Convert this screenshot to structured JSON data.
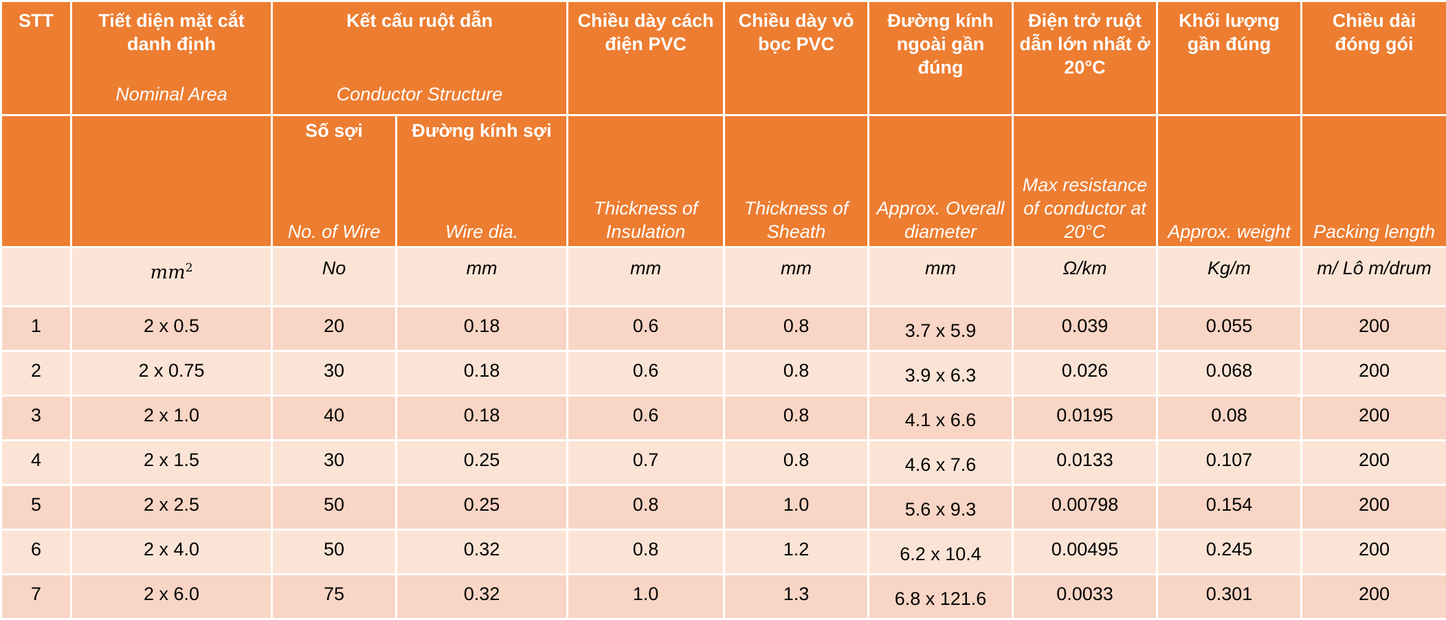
{
  "header": {
    "stt": "STT",
    "area": {
      "vi": "Tiết diện mặt cắt danh định",
      "en": "Nominal Area"
    },
    "structure": {
      "vi": "Kết cấu ruột dẫn",
      "en": "Conductor Structure"
    },
    "insulation": {
      "vi": "Chiều dày cách điện PVC",
      "en": "Thickness of Insulation"
    },
    "sheath": {
      "vi": "Chiều dày vỏ bọc PVC",
      "en": "Thickness of Sheath"
    },
    "diameter": {
      "vi": "Đường kính ngoài gần đúng",
      "en": "Approx. Overall diameter"
    },
    "resistance": {
      "vi": "Điện trở ruột dẫn lớn nhất ở 20°C",
      "en": "Max resistance of conductor at 20°C"
    },
    "weight": {
      "vi": "Khối lượng gần đúng",
      "en": "Approx. weight"
    },
    "length": {
      "vi": "Chiều dài đóng gói",
      "en": "Packing length"
    },
    "wires": {
      "vi": "Số sợi",
      "en": "No. of Wire"
    },
    "wire_dia": {
      "vi": "Đường kính sợi",
      "en": "Wire dia."
    }
  },
  "units": {
    "area_base": "mm",
    "area_exp": "2",
    "wires": "No",
    "wire_dia": "mm",
    "insulation": "mm",
    "sheath": "mm",
    "diameter": "mm",
    "resistance": "Ω/km",
    "weight": "Kg/m",
    "length": "m/ Lô m/drum"
  },
  "rows": [
    {
      "stt": "1",
      "area": "2 x 0.5",
      "wires": "20",
      "wire_dia": "0.18",
      "insulation": "0.6",
      "sheath": "0.8",
      "diameter": "3.7 x 5.9",
      "resistance": "0.039",
      "weight": "0.055",
      "length": "200"
    },
    {
      "stt": "2",
      "area": "2 x 0.75",
      "wires": "30",
      "wire_dia": "0.18",
      "insulation": "0.6",
      "sheath": "0.8",
      "diameter": "3.9 x 6.3",
      "resistance": "0.026",
      "weight": "0.068",
      "length": "200"
    },
    {
      "stt": "3",
      "area": "2 x 1.0",
      "wires": "40",
      "wire_dia": "0.18",
      "insulation": "0.6",
      "sheath": "0.8",
      "diameter": "4.1 x 6.6",
      "resistance": "0.0195",
      "weight": "0.08",
      "length": "200"
    },
    {
      "stt": "4",
      "area": "2 x 1.5",
      "wires": "30",
      "wire_dia": "0.25",
      "insulation": "0.7",
      "sheath": "0.8",
      "diameter": "4.6 x 7.6",
      "resistance": "0.0133",
      "weight": "0.107",
      "length": "200"
    },
    {
      "stt": "5",
      "area": "2 x 2.5",
      "wires": "50",
      "wire_dia": "0.25",
      "insulation": "0.8",
      "sheath": "1.0",
      "diameter": "5.6 x 9.3",
      "resistance": "0.00798",
      "weight": "0.154",
      "length": "200"
    },
    {
      "stt": "6",
      "area": "2 x 4.0",
      "wires": "50",
      "wire_dia": "0.32",
      "insulation": "0.8",
      "sheath": "1.2",
      "diameter": "6.2 x 10.4",
      "resistance": "0.00495",
      "weight": "0.245",
      "length": "200"
    },
    {
      "stt": "7",
      "area": "2 x 6.0",
      "wires": "75",
      "wire_dia": "0.32",
      "insulation": "1.0",
      "sheath": "1.3",
      "diameter": "6.8 x 121.6",
      "resistance": "0.0033",
      "weight": "0.301",
      "length": "200"
    }
  ],
  "colors": {
    "header_bg": "#ed7d31",
    "header_text": "#ffffff",
    "row_light": "#fbe4d5",
    "row_dark": "#f8d5c4"
  }
}
